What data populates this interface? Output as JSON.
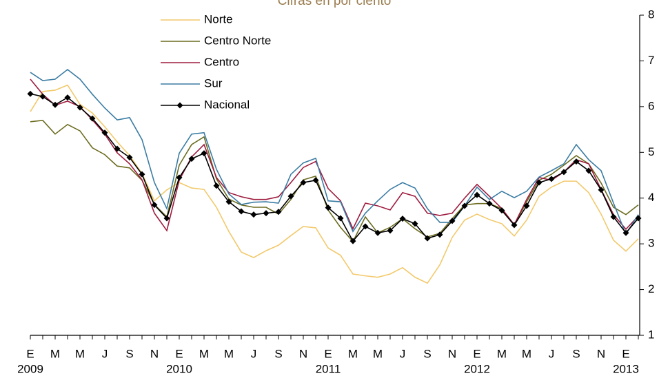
{
  "chart_data": {
    "type": "line",
    "title": "Cifras en por ciento",
    "categories": [
      "E",
      null,
      "M",
      null,
      "M",
      null,
      "J",
      null,
      "S",
      null,
      "N",
      null,
      "E",
      null,
      "M",
      null,
      "M",
      null,
      "J",
      null,
      "S",
      null,
      "N",
      null,
      "E",
      null,
      "M",
      null,
      "M",
      null,
      "J",
      null,
      "S",
      null,
      "N",
      null,
      "E",
      null,
      "M",
      null,
      "M",
      null,
      "J",
      null,
      "S",
      null,
      "N",
      null,
      "E",
      null
    ],
    "years": [
      "2009",
      null,
      null,
      null,
      null,
      null,
      null,
      null,
      null,
      null,
      null,
      null,
      "2010",
      null,
      null,
      null,
      null,
      null,
      null,
      null,
      null,
      null,
      null,
      null,
      "2011",
      null,
      null,
      null,
      null,
      null,
      null,
      null,
      null,
      null,
      null,
      null,
      "2012",
      null,
      null,
      null,
      null,
      null,
      null,
      null,
      null,
      null,
      null,
      null,
      "2013",
      null
    ],
    "series": [
      {
        "name": "Norte",
        "color": "#f2c96b",
        "values": [
          5.89,
          6.33,
          6.36,
          6.47,
          6.05,
          5.86,
          5.56,
          5.23,
          4.93,
          4.54,
          3.94,
          4.18,
          4.34,
          4.22,
          4.19,
          3.8,
          3.27,
          2.82,
          2.7,
          2.85,
          2.97,
          3.18,
          3.38,
          3.35,
          2.91,
          2.75,
          2.34,
          2.3,
          2.27,
          2.34,
          2.48,
          2.27,
          2.14,
          2.54,
          3.14,
          3.52,
          3.65,
          3.53,
          3.44,
          3.17,
          3.52,
          4.04,
          4.24,
          4.37,
          4.37,
          4.12,
          3.65,
          3.08,
          2.84,
          3.11
        ]
      },
      {
        "name": "Centro Norte",
        "color": "#6b6b1f",
        "values": [
          5.67,
          5.7,
          5.4,
          5.61,
          5.47,
          5.1,
          4.95,
          4.7,
          4.66,
          4.39,
          3.86,
          3.59,
          4.72,
          5.17,
          5.34,
          4.42,
          3.98,
          3.85,
          3.8,
          3.8,
          3.65,
          3.97,
          4.4,
          4.48,
          3.74,
          3.36,
          3.05,
          3.59,
          3.24,
          3.36,
          3.55,
          3.33,
          3.15,
          3.23,
          3.55,
          3.85,
          3.88,
          3.88,
          3.77,
          3.41,
          3.92,
          4.39,
          4.52,
          4.72,
          4.93,
          4.75,
          4.33,
          3.8,
          3.64,
          3.85
        ]
      },
      {
        "name": "Centro",
        "color": "#9e1b3e",
        "values": [
          6.6,
          6.27,
          6.03,
          6.12,
          6.0,
          5.71,
          5.4,
          4.99,
          4.75,
          4.4,
          3.67,
          3.29,
          4.39,
          4.9,
          5.17,
          4.45,
          4.12,
          4.03,
          3.97,
          3.97,
          4.03,
          4.34,
          4.67,
          4.8,
          4.21,
          3.94,
          3.33,
          3.89,
          3.83,
          3.74,
          4.12,
          4.04,
          3.67,
          3.62,
          3.67,
          4.0,
          4.3,
          4.04,
          3.77,
          3.42,
          3.97,
          4.45,
          4.39,
          4.57,
          4.84,
          4.75,
          4.19,
          3.64,
          3.32,
          3.61
        ]
      },
      {
        "name": "Sur",
        "color": "#3b7ca3",
        "values": [
          6.75,
          6.57,
          6.6,
          6.81,
          6.6,
          6.27,
          5.97,
          5.71,
          5.76,
          5.28,
          4.34,
          3.77,
          4.98,
          5.4,
          5.43,
          4.63,
          4.09,
          3.86,
          3.91,
          3.92,
          3.89,
          4.52,
          4.77,
          4.87,
          3.94,
          3.92,
          3.27,
          3.67,
          3.94,
          4.19,
          4.34,
          4.22,
          3.77,
          3.47,
          3.47,
          3.83,
          4.24,
          3.97,
          4.15,
          4.01,
          4.15,
          4.46,
          4.6,
          4.75,
          5.17,
          4.84,
          4.6,
          3.89,
          3.21,
          3.64
        ]
      },
      {
        "name": "Nacional",
        "color": "#000000",
        "marker": "diamond",
        "values": [
          6.28,
          6.22,
          6.04,
          6.2,
          5.98,
          5.74,
          5.43,
          5.08,
          4.89,
          4.52,
          3.85,
          3.56,
          4.45,
          4.86,
          4.98,
          4.27,
          3.92,
          3.71,
          3.64,
          3.67,
          3.7,
          4.04,
          4.34,
          4.39,
          3.79,
          3.56,
          3.06,
          3.38,
          3.24,
          3.29,
          3.55,
          3.44,
          3.12,
          3.2,
          3.5,
          3.83,
          4.07,
          3.88,
          3.73,
          3.41,
          3.83,
          4.34,
          4.42,
          4.57,
          4.8,
          4.6,
          4.18,
          3.59,
          3.24,
          3.56
        ]
      }
    ],
    "ylim": [
      1,
      8
    ],
    "yticks": [
      1,
      2,
      3,
      4,
      5,
      6,
      7,
      8
    ],
    "y_axis_side": "right",
    "legend": "top-center",
    "title_color": "#9b7d4f"
  }
}
